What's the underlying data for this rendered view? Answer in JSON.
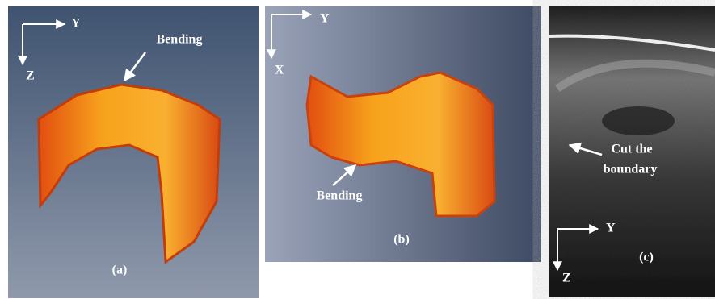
{
  "panels": [
    {
      "caption": "(a)",
      "axes": {
        "horizontal": "Y",
        "vertical": "Z"
      },
      "annotations": [
        "Bending"
      ]
    },
    {
      "caption": "(b)",
      "axes": {
        "horizontal": "Y",
        "vertical": "X"
      },
      "annotations": [
        "Bending"
      ]
    },
    {
      "caption": "(c)",
      "axes": {
        "horizontal": "Y",
        "vertical": "Z"
      },
      "annotations": [
        "Cut the",
        "boundary"
      ]
    }
  ]
}
